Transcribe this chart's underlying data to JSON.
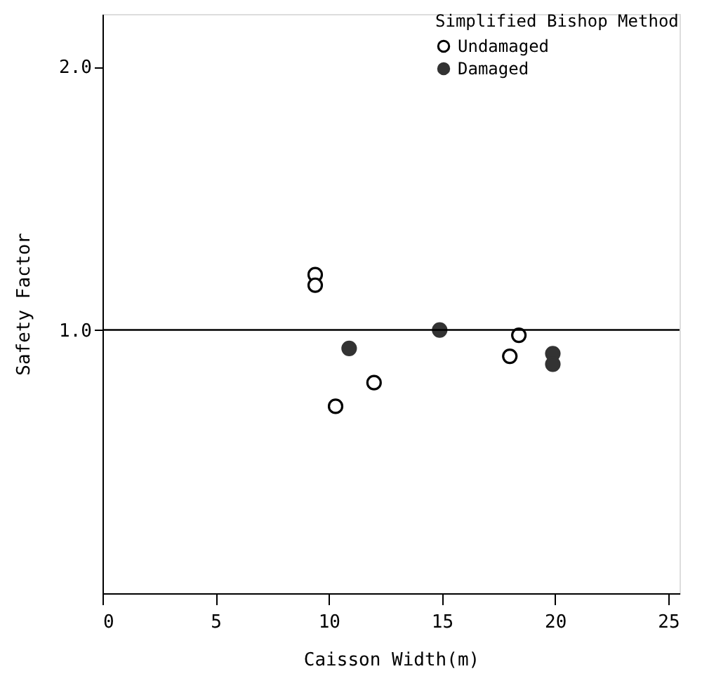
{
  "chart_data": {
    "type": "scatter",
    "xlabel": "Caisson Width(m)",
    "ylabel": "Safety Factor",
    "legend_title": "Simplified Bishop Method",
    "legend": "top right",
    "xlim": [
      0,
      25.5
    ],
    "xticks": [
      0,
      5,
      10,
      15,
      20,
      25
    ],
    "ylim": [
      0,
      2.2
    ],
    "yticks": [
      {
        "value": 1.0,
        "label": "1.0"
      },
      {
        "value": 2.0,
        "label": "2.0"
      }
    ],
    "grid": false,
    "marker": "circle",
    "ref_lines": [
      {
        "axis": "y",
        "value": 1.0,
        "color": "#000000"
      }
    ],
    "series": [
      {
        "name": "Undamaged",
        "color": "#000000",
        "x": [
          9.4,
          9.4,
          10.3,
          12.0,
          18.0,
          18.4
        ],
        "values": [
          1.21,
          1.17,
          0.71,
          0.8,
          0.9,
          0.98
        ]
      },
      {
        "name": "Damaged",
        "color": "#333333",
        "x": [
          10.9,
          14.9,
          19.9,
          19.9
        ],
        "values": [
          0.93,
          1.0,
          0.91,
          0.87
        ]
      }
    ]
  }
}
